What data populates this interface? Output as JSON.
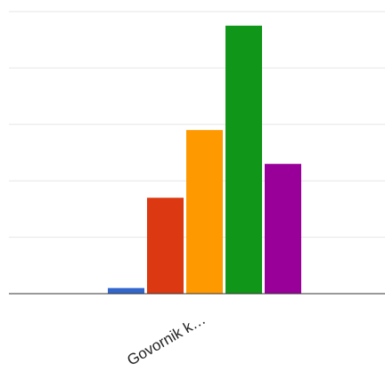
{
  "chart_data": {
    "type": "bar",
    "categories": [
      "Govornik k…"
    ],
    "series": [
      {
        "values": [
          1
        ],
        "color": "#3366cc"
      },
      {
        "values": [
          17
        ],
        "color": "#dc3912"
      },
      {
        "values": [
          29
        ],
        "color": "#ff9900"
      },
      {
        "values": [
          47.5
        ],
        "color": "#109618"
      },
      {
        "values": [
          23
        ],
        "color": "#990099"
      }
    ],
    "ylim": [
      0,
      50
    ],
    "gridlines": [
      10,
      20,
      30,
      40,
      50
    ],
    "grid": true,
    "legend": "none",
    "title": "",
    "xlabel": "",
    "ylabel": ""
  }
}
